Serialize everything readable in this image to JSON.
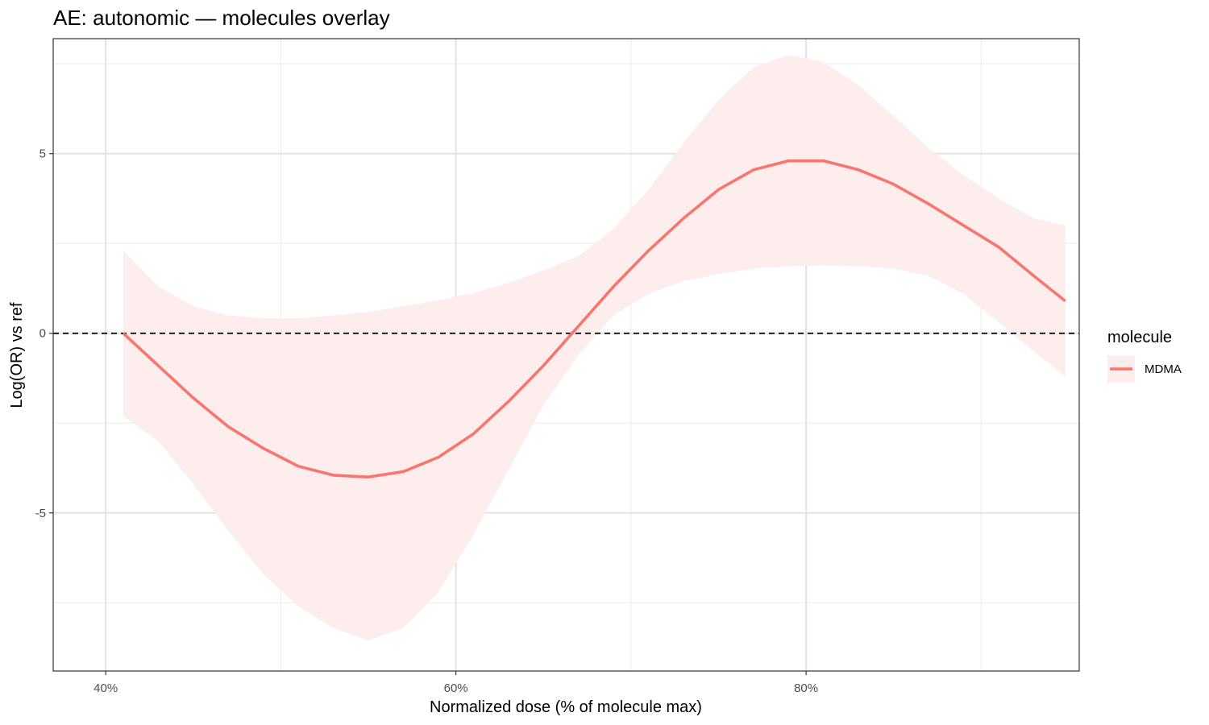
{
  "chart_data": {
    "type": "line",
    "title": "AE: autonomic — molecules overlay",
    "xlabel": "Normalized dose (% of molecule max)",
    "ylabel": "Log(OR) vs ref",
    "xlim": [
      37,
      95.6
    ],
    "ylim": [
      -9.4,
      8.2
    ],
    "x_ticks": [
      {
        "value": 40,
        "label": "40%"
      },
      {
        "value": 60,
        "label": "60%"
      },
      {
        "value": 80,
        "label": "80%"
      }
    ],
    "x_minor_ticks": [
      50,
      70,
      90
    ],
    "y_ticks": [
      {
        "value": -5,
        "label": "-5"
      },
      {
        "value": 0,
        "label": "0"
      },
      {
        "value": 5,
        "label": "5"
      }
    ],
    "y_minor_ticks": [
      -7.5,
      -2.5,
      2.5,
      7.5
    ],
    "reference_line": {
      "y": 0,
      "style": "dashed",
      "color": "#000000"
    },
    "grid": true,
    "legend": {
      "title": "molecule",
      "position": "right"
    },
    "series": [
      {
        "name": "MDMA",
        "color": "#F8766D",
        "ribbon_color": "#FDEDED",
        "x": [
          41,
          43,
          45,
          47,
          49,
          51,
          53,
          55,
          57,
          59,
          61,
          63,
          65,
          67,
          69,
          71,
          73,
          75,
          77,
          79,
          81,
          83,
          85,
          87,
          89,
          91,
          93,
          94.8
        ],
        "y": [
          0.0,
          -0.9,
          -1.8,
          -2.6,
          -3.2,
          -3.7,
          -3.95,
          -4.0,
          -3.85,
          -3.45,
          -2.8,
          -1.9,
          -0.9,
          0.2,
          1.3,
          2.3,
          3.2,
          4.0,
          4.55,
          4.8,
          4.8,
          4.55,
          4.15,
          3.6,
          3.0,
          2.4,
          1.6,
          0.9
        ],
        "lower": [
          -2.3,
          -3.0,
          -4.2,
          -5.5,
          -6.7,
          -7.6,
          -8.2,
          -8.55,
          -8.2,
          -7.2,
          -5.6,
          -3.8,
          -2.0,
          -0.6,
          0.5,
          1.1,
          1.45,
          1.65,
          1.8,
          1.87,
          1.88,
          1.87,
          1.8,
          1.6,
          1.1,
          0.3,
          -0.5,
          -1.2
        ],
        "upper": [
          2.3,
          1.3,
          0.75,
          0.5,
          0.42,
          0.42,
          0.5,
          0.6,
          0.75,
          0.92,
          1.12,
          1.4,
          1.75,
          2.15,
          2.9,
          4.0,
          5.3,
          6.5,
          7.4,
          7.75,
          7.55,
          6.9,
          6.05,
          5.15,
          4.4,
          3.75,
          3.2,
          3.0
        ]
      }
    ]
  }
}
